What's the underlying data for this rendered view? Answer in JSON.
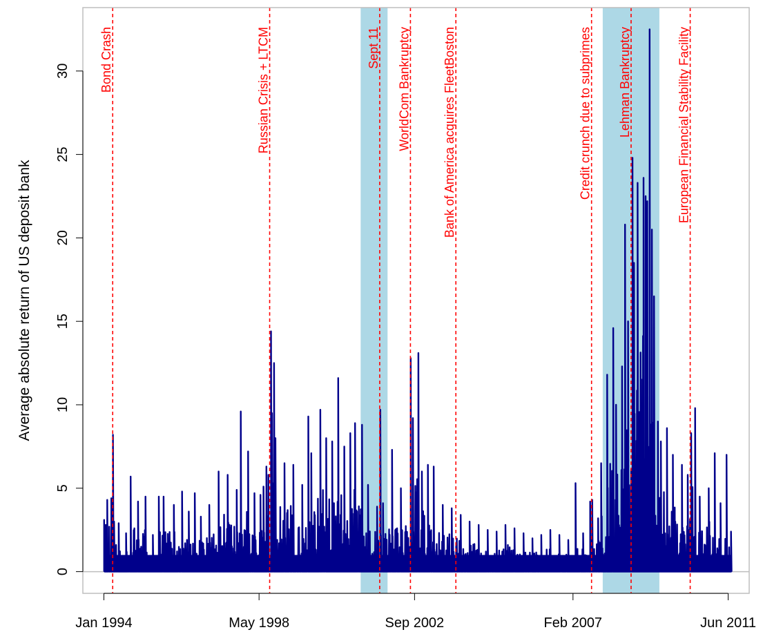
{
  "chart_data": {
    "type": "line",
    "title": "",
    "xlabel": "",
    "ylabel": "Average absolute return of US deposit bank",
    "x_tick_labels": [
      "Jan 1994",
      "May 1998",
      "Sep 2002",
      "Feb 2007",
      "Jun 2011"
    ],
    "x_ticks": [
      "1994-01-01",
      "1998-05-01",
      "2002-09-01",
      "2007-02-01",
      "2011-06-01"
    ],
    "xlim": [
      "1993-06-01",
      "2012-01-01"
    ],
    "ylim": [
      -1.3,
      33.8
    ],
    "y_ticks": [
      0,
      5,
      10,
      15,
      20,
      25,
      30
    ],
    "y_tick_labels": [
      "0",
      "5",
      "10",
      "15",
      "20",
      "25",
      "30"
    ],
    "grid": false,
    "baseline": 0,
    "colors": {
      "series": "#00008b",
      "events": "#ff0000",
      "shading": "#add8e6",
      "baseline": "#bebebe"
    },
    "shaded_periods": [
      {
        "start": "2001-03-01",
        "end": "2001-11-30"
      },
      {
        "start": "2007-12-01",
        "end": "2009-06-30"
      }
    ],
    "events": [
      {
        "date": "1994-04-01",
        "label": "Bond Crash"
      },
      {
        "date": "1998-08-17",
        "label": "Russian Crisis + LTCM"
      },
      {
        "date": "2001-09-11",
        "label": "Sept 11"
      },
      {
        "date": "2002-07-21",
        "label": "WorldCom Bankruptcy"
      },
      {
        "date": "2003-10-27",
        "label": "Bank of America acquires FleetBoston"
      },
      {
        "date": "2007-08-09",
        "label": "Credit crunch due to subprimes"
      },
      {
        "date": "2008-09-15",
        "label": "Lehman Bankruptcy"
      },
      {
        "date": "2010-05-10",
        "label": "European Financial Stability Facility"
      }
    ],
    "series": [
      {
        "values": [
          [
            "1994-01-04",
            3.1
          ],
          [
            "1994-01-20",
            2.8
          ],
          [
            "1994-02-04",
            4.3
          ],
          [
            "1994-02-25",
            2.7
          ],
          [
            "1994-03-18",
            4.4
          ],
          [
            "1994-04-04",
            8.2
          ],
          [
            "1994-04-15",
            3.0
          ],
          [
            "1994-06-01",
            2.9
          ],
          [
            "1994-08-15",
            2.3
          ],
          [
            "1994-10-01",
            5.7
          ],
          [
            "1994-12-15",
            4.2
          ],
          [
            "1995-03-01",
            4.5
          ],
          [
            "1995-05-15",
            2.2
          ],
          [
            "1995-07-15",
            4.5
          ],
          [
            "1995-09-01",
            4.5
          ],
          [
            "1995-12-15",
            4.0
          ],
          [
            "1996-03-08",
            4.8
          ],
          [
            "1996-05-15",
            3.6
          ],
          [
            "1996-07-15",
            4.7
          ],
          [
            "1996-09-15",
            3.3
          ],
          [
            "1996-12-10",
            4.0
          ],
          [
            "1997-03-15",
            6.0
          ],
          [
            "1997-06-15",
            5.8
          ],
          [
            "1997-09-15",
            4.9
          ],
          [
            "1997-10-27",
            9.6
          ],
          [
            "1998-01-09",
            7.2
          ],
          [
            "1998-03-15",
            4.7
          ],
          [
            "1998-05-15",
            4.6
          ],
          [
            "1998-06-15",
            5.1
          ],
          [
            "1998-07-15",
            6.3
          ],
          [
            "1998-08-04",
            5.8
          ],
          [
            "1998-08-31",
            14.4
          ],
          [
            "1998-09-10",
            9.5
          ],
          [
            "1998-10-01",
            12.5
          ],
          [
            "1998-10-15",
            8.0
          ],
          [
            "1999-01-15",
            6.5
          ],
          [
            "1999-04-15",
            6.4
          ],
          [
            "1999-07-15",
            5.2
          ],
          [
            "1999-09-15",
            9.3
          ],
          [
            "1999-10-15",
            7.1
          ],
          [
            "2000-01-15",
            9.7
          ],
          [
            "2000-03-15",
            8.0
          ],
          [
            "2000-05-15",
            7.8
          ],
          [
            "2000-07-15",
            11.6
          ],
          [
            "2000-09-15",
            7.5
          ],
          [
            "2000-11-15",
            8.3
          ],
          [
            "2001-01-03",
            8.9
          ],
          [
            "2001-03-15",
            8.8
          ],
          [
            "2001-05-15",
            5.2
          ],
          [
            "2001-08-15",
            3.9
          ],
          [
            "2001-09-17",
            9.7
          ],
          [
            "2001-10-15",
            4.1
          ],
          [
            "2002-01-15",
            7.3
          ],
          [
            "2002-04-15",
            5.0
          ],
          [
            "2002-07-24",
            12.8
          ],
          [
            "2002-08-15",
            9.2
          ],
          [
            "2002-10-10",
            13.1
          ],
          [
            "2002-11-15",
            6.0
          ],
          [
            "2003-01-15",
            6.4
          ],
          [
            "2003-03-15",
            6.3
          ],
          [
            "2003-06-15",
            4.0
          ],
          [
            "2003-09-15",
            3.8
          ],
          [
            "2003-12-15",
            3.4
          ],
          [
            "2004-03-15",
            3.0
          ],
          [
            "2004-06-15",
            2.8
          ],
          [
            "2004-09-15",
            2.5
          ],
          [
            "2004-12-15",
            2.4
          ],
          [
            "2005-03-15",
            2.8
          ],
          [
            "2005-06-15",
            2.6
          ],
          [
            "2005-09-15",
            2.3
          ],
          [
            "2005-12-15",
            2.0
          ],
          [
            "2006-03-15",
            2.2
          ],
          [
            "2006-06-15",
            2.5
          ],
          [
            "2006-09-15",
            2.2
          ],
          [
            "2006-12-15",
            1.9
          ],
          [
            "2007-02-27",
            5.3
          ],
          [
            "2007-05-15",
            2.3
          ],
          [
            "2007-07-26",
            4.2
          ],
          [
            "2007-08-16",
            4.3
          ],
          [
            "2007-10-15",
            3.2
          ],
          [
            "2007-11-15",
            6.5
          ],
          [
            "2008-01-15",
            11.8
          ],
          [
            "2008-03-17",
            14.6
          ],
          [
            "2008-04-15",
            10.0
          ],
          [
            "2008-06-15",
            12.3
          ],
          [
            "2008-07-15",
            20.8
          ],
          [
            "2008-08-15",
            15.0
          ],
          [
            "2008-09-29",
            24.8
          ],
          [
            "2008-10-15",
            18.5
          ],
          [
            "2008-11-20",
            23.3
          ],
          [
            "2009-01-20",
            23.6
          ],
          [
            "2009-02-10",
            22.5
          ],
          [
            "2009-02-27",
            22.2
          ],
          [
            "2009-03-23",
            32.5
          ],
          [
            "2009-04-15",
            20.5
          ],
          [
            "2009-05-07",
            16.5
          ],
          [
            "2009-06-15",
            9.0
          ],
          [
            "2009-07-15",
            7.8
          ],
          [
            "2009-09-15",
            8.6
          ],
          [
            "2009-11-15",
            7.0
          ],
          [
            "2010-02-15",
            6.4
          ],
          [
            "2010-04-15",
            5.8
          ],
          [
            "2010-05-20",
            8.3
          ],
          [
            "2010-06-29",
            9.8
          ],
          [
            "2010-08-15",
            4.5
          ],
          [
            "2010-11-15",
            5.0
          ],
          [
            "2011-01-15",
            7.1
          ],
          [
            "2011-03-15",
            4.1
          ],
          [
            "2011-05-15",
            7.0
          ],
          [
            "2011-06-30",
            2.4
          ]
        ]
      }
    ]
  }
}
